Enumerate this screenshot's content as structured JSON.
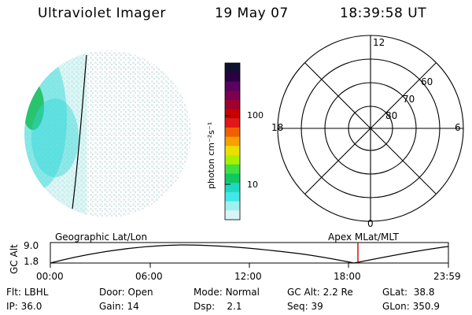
{
  "header": {
    "instrument": "Ultraviolet Imager",
    "date": "19 May 07",
    "time": "18:39:58 UT"
  },
  "colorbar": {
    "unit_label": "photon cm⁻²s⁻¹",
    "ticks": [
      "100",
      "10"
    ],
    "colors": [
      "#101030",
      "#2a0040",
      "#5a0060",
      "#7a0050",
      "#a00030",
      "#c80000",
      "#e01818",
      "#f06000",
      "#f8a000",
      "#e8e000",
      "#a8f000",
      "#40e040",
      "#10c860",
      "#20d8c0",
      "#40e8e8",
      "#a0f0f0",
      "#d8f4f4"
    ]
  },
  "polar_grid": {
    "mlt_labels": [
      "12",
      "18",
      "6",
      "0"
    ],
    "lat_labels": [
      "60",
      "70",
      "80"
    ]
  },
  "orbit_plot": {
    "left_title": "Geographic Lat/Lon",
    "right_title": "Apex MLat/MLT",
    "ylabel": "GC Alt",
    "y_ticks": [
      "9.0",
      "1.8"
    ],
    "x_ticks": [
      "00:00",
      "06:00",
      "12:00",
      "18:00",
      "23:59"
    ],
    "current_time_marker": "18:39:58",
    "line_color": "#000000",
    "marker_color": "#cc0000"
  },
  "status": {
    "row1": [
      {
        "label": "Flt:",
        "value": "LBHL"
      },
      {
        "label": "Door:",
        "value": "Open"
      },
      {
        "label": "Mode:",
        "value": "Normal"
      },
      {
        "label": "GC Alt:",
        "value": "2.2 Re"
      },
      {
        "label": "GLat:",
        "value": "38.8"
      }
    ],
    "row2": [
      {
        "label": "IP:",
        "value": "36.0"
      },
      {
        "label": "Gain:",
        "value": "14"
      },
      {
        "label": "Dsp:",
        "value": "2.1"
      },
      {
        "label": "Seq:",
        "value": "39"
      },
      {
        "label": "GLon:",
        "value": "350.9"
      }
    ]
  }
}
